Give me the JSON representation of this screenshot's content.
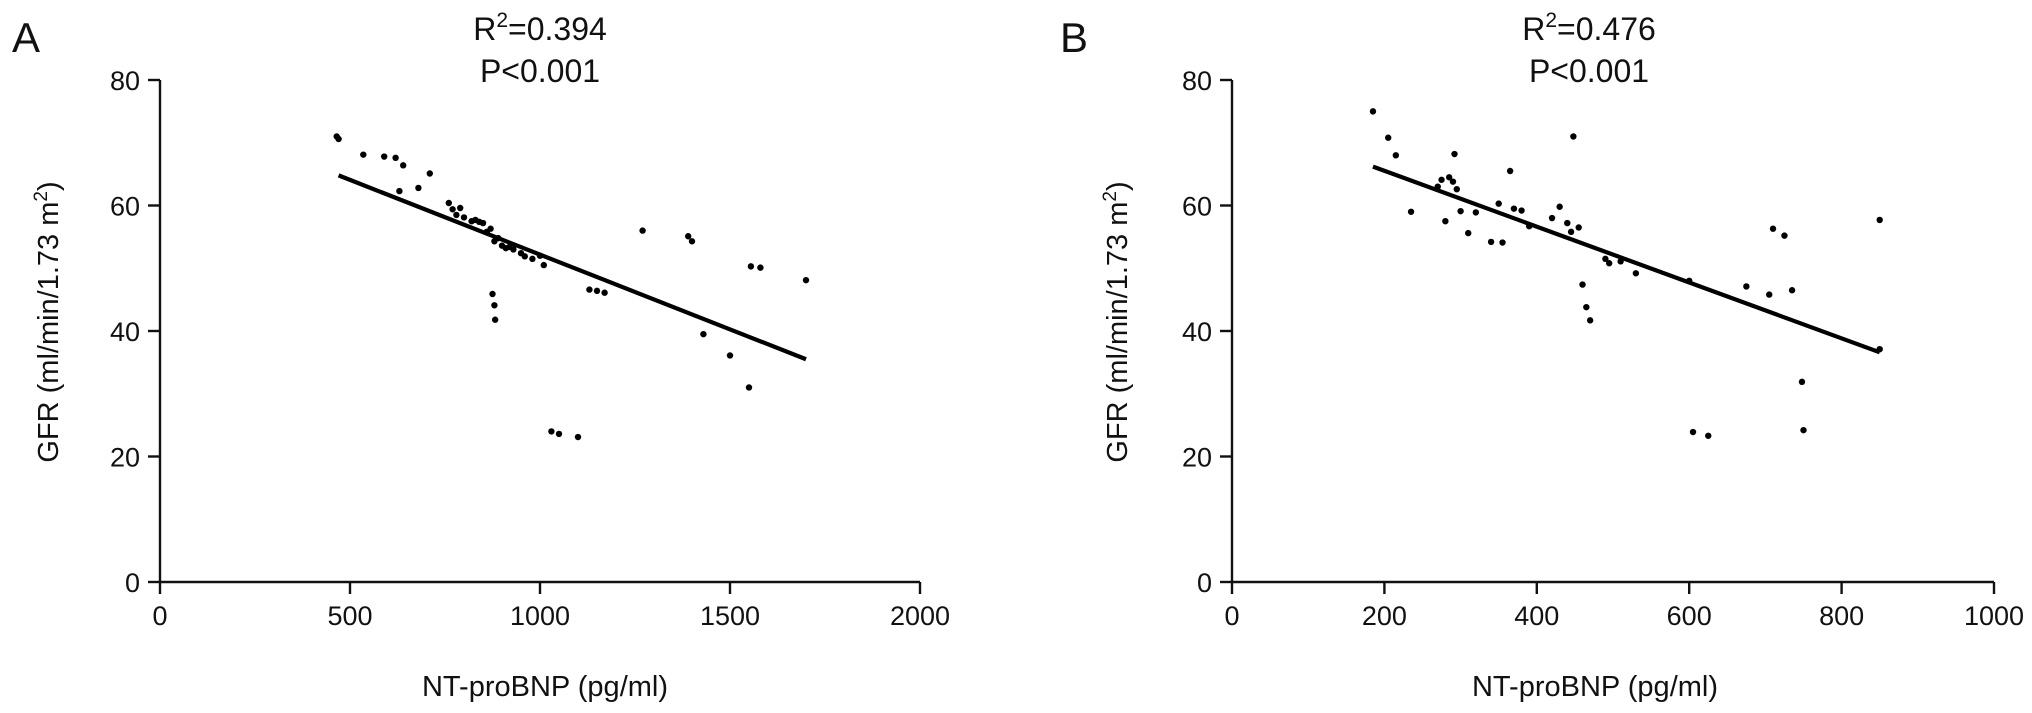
{
  "chart_data": [
    {
      "type": "scatter",
      "panel_label": "A",
      "annotation": {
        "r2_prefix": "R",
        "r2_sup": "2",
        "r2_value": "=0.394",
        "p_text": "P<0.001"
      },
      "xlabel": "NT-proBNP (pg/ml)",
      "ylabel_main": "GFR (ml/min/1.73 m",
      "ylabel_sup": "2",
      "ylabel_end": ")",
      "xlim": [
        0,
        2000
      ],
      "ylim": [
        0,
        80
      ],
      "xticks": [
        0,
        500,
        1000,
        1500,
        2000
      ],
      "yticks": [
        0,
        20,
        40,
        60,
        80
      ],
      "grid": false,
      "regression": {
        "x": [
          470,
          1700
        ],
        "y": [
          64.8,
          35.5
        ]
      },
      "points": {
        "x": [
          465,
          470,
          535,
          590,
          620,
          630,
          640,
          680,
          710,
          760,
          770,
          780,
          790,
          800,
          820,
          830,
          840,
          850,
          860,
          870,
          880,
          890,
          900,
          910,
          920,
          930,
          950,
          960,
          980,
          1000,
          1010,
          875,
          880,
          882,
          1030,
          1050,
          1100,
          1130,
          1150,
          1170,
          1270,
          1390,
          1400,
          1430,
          1500,
          1550,
          1555,
          1580,
          1700
        ],
        "y": [
          71,
          70.6,
          68.1,
          67.8,
          67.6,
          62.3,
          66.4,
          62.8,
          65.1,
          60.4,
          59.4,
          58.5,
          59.6,
          58.1,
          57.5,
          57.7,
          57.4,
          57.2,
          55.8,
          56.3,
          54.3,
          54.8,
          53.6,
          53.2,
          53.4,
          53,
          52.4,
          51.9,
          51.5,
          52,
          50.5,
          45.9,
          44.1,
          41.8,
          24,
          23.6,
          23.1,
          46.6,
          46.4,
          46.1,
          56,
          55.1,
          54.3,
          39.5,
          36.1,
          31,
          50.3,
          50.1,
          48.1
        ]
      }
    },
    {
      "type": "scatter",
      "panel_label": "B",
      "annotation": {
        "r2_prefix": "R",
        "r2_sup": "2",
        "r2_value": "=0.476",
        "p_text": "P<0.001"
      },
      "xlabel": "NT-proBNP (pg/ml)",
      "ylabel_main": "GFR (ml/min/1.73 m",
      "ylabel_sup": "2",
      "ylabel_end": ")",
      "xlim": [
        0,
        1000
      ],
      "ylim": [
        0,
        80
      ],
      "xticks": [
        0,
        200,
        400,
        600,
        800,
        1000
      ],
      "yticks": [
        0,
        20,
        40,
        60,
        80
      ],
      "grid": false,
      "regression": {
        "x": [
          185,
          850
        ],
        "y": [
          66.2,
          36.6
        ]
      },
      "points": {
        "x": [
          185,
          205,
          215,
          235,
          270,
          275,
          280,
          285,
          290,
          292,
          295,
          300,
          310,
          320,
          340,
          350,
          355,
          365,
          370,
          380,
          390,
          420,
          430,
          440,
          445,
          448,
          455,
          460,
          465,
          470,
          490,
          495,
          510,
          530,
          600,
          605,
          625,
          675,
          705,
          710,
          725,
          735,
          748,
          750,
          850,
          850
        ],
        "y": [
          75,
          70.8,
          68,
          59,
          63,
          64.1,
          57.5,
          64.5,
          63.8,
          68.2,
          62.6,
          59.1,
          55.6,
          58.9,
          54.2,
          60.3,
          54.1,
          65.5,
          59.5,
          59.2,
          56.7,
          58,
          59.8,
          57.2,
          55.8,
          71,
          56.5,
          47.4,
          43.8,
          41.7,
          51.5,
          50.8,
          51.1,
          49.2,
          48,
          23.9,
          23.3,
          47.1,
          45.8,
          56.3,
          55.2,
          46.5,
          31.9,
          24.2,
          57.7,
          37.1
        ]
      }
    }
  ]
}
